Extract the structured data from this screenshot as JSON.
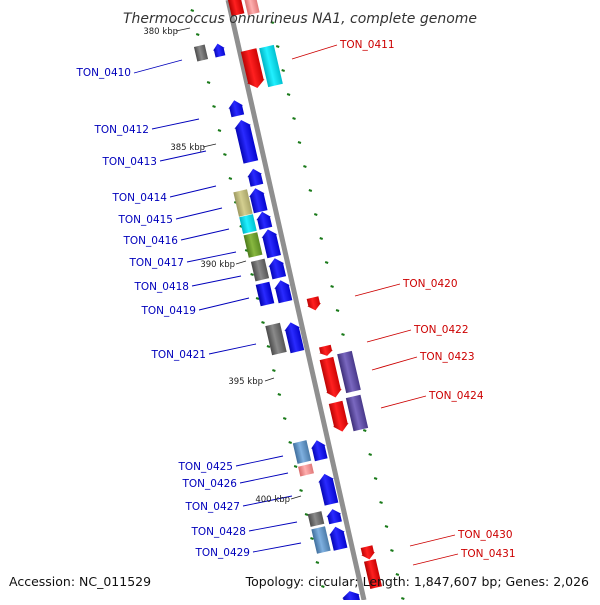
{
  "title": "Thermococcus onnurineus NA1, complete genome",
  "footer": {
    "accession": "Accession: NC_011529",
    "topology": "Topology: circular; Length: 1,847,607 bp; Genes: 2,026"
  },
  "colors": {
    "backbone": "#8f8f8f",
    "forward_label": "#0000bb",
    "reverse_label": "#cc0000",
    "tick": "#1a7a1a"
  },
  "position_ticks": [
    "380 kbp",
    "385 kbp",
    "390 kbp",
    "395 kbp",
    "400 kbp"
  ],
  "forward_genes": [
    "TON_0410",
    "TON_0412",
    "TON_0413",
    "TON_0414",
    "TON_0415",
    "TON_0416",
    "TON_0417",
    "TON_0418",
    "TON_0419",
    "TON_0421",
    "TON_0425",
    "TON_0426",
    "TON_0427",
    "TON_0428",
    "TON_0429"
  ],
  "reverse_genes": [
    "TON_0411",
    "TON_0420",
    "TON_0422",
    "TON_0423",
    "TON_0424",
    "TON_0430",
    "TON_0431"
  ]
}
